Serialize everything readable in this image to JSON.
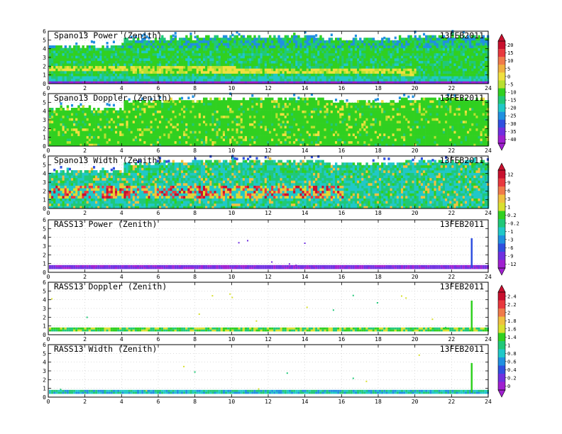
{
  "chart_data": [
    {
      "type": "heatmap",
      "title": "Spano13 Power (Zenith)",
      "date": "13FEB2011",
      "xlim": [
        0,
        24
      ],
      "ylim": [
        0,
        6
      ],
      "xticks": [
        "0",
        "2",
        "4",
        "6",
        "8",
        "10",
        "12",
        "14",
        "16",
        "18",
        "20",
        "22",
        "24"
      ],
      "yticks": [
        "0",
        "1",
        "2",
        "3",
        "4",
        "5",
        "6"
      ],
      "colorscale": "power",
      "pattern": "power",
      "top_profile": [
        [
          0,
          4.5
        ],
        [
          3.9,
          4.5
        ],
        [
          4,
          5.3
        ],
        [
          6,
          5.4
        ],
        [
          8,
          5.6
        ],
        [
          12,
          5.6
        ],
        [
          15,
          5.3
        ],
        [
          19,
          5.6
        ],
        [
          21,
          5.6
        ],
        [
          24,
          5.3
        ]
      ]
    },
    {
      "type": "heatmap",
      "title": "Spano13 Doppler (Zenith)",
      "date": "13FEB2011",
      "xlim": [
        0,
        24
      ],
      "ylim": [
        0,
        6
      ],
      "xticks": [
        "0",
        "2",
        "4",
        "6",
        "8",
        "10",
        "12",
        "14",
        "16",
        "18",
        "20",
        "22",
        "24"
      ],
      "yticks": [
        "0",
        "1",
        "2",
        "3",
        "4",
        "5",
        "6"
      ],
      "colorscale": "power",
      "pattern": "doppler",
      "top_profile": [
        [
          0,
          4.5
        ],
        [
          3.9,
          4.5
        ],
        [
          4,
          5.3
        ],
        [
          6,
          5.4
        ],
        [
          8,
          5.6
        ],
        [
          12,
          5.6
        ],
        [
          15,
          5.3
        ],
        [
          19,
          5.6
        ],
        [
          21,
          5.6
        ],
        [
          24,
          5.3
        ]
      ]
    },
    {
      "type": "heatmap",
      "title": "Spano13 Width (Zenith)",
      "date": "13FEB2011",
      "xlim": [
        0,
        24
      ],
      "ylim": [
        0,
        6
      ],
      "xticks": [
        "0",
        "2",
        "4",
        "6",
        "8",
        "10",
        "12",
        "14",
        "16",
        "18",
        "20",
        "22",
        "24"
      ],
      "yticks": [
        "0",
        "1",
        "2",
        "3",
        "4",
        "5",
        "6"
      ],
      "colorscale": "width",
      "pattern": "width",
      "top_profile": [
        [
          0,
          4.5
        ],
        [
          3.9,
          4.5
        ],
        [
          4,
          5.3
        ],
        [
          6,
          5.4
        ],
        [
          8,
          5.6
        ],
        [
          12,
          5.6
        ],
        [
          15,
          5.3
        ],
        [
          19,
          5.6
        ],
        [
          21,
          5.6
        ],
        [
          24,
          5.3
        ]
      ]
    },
    {
      "type": "heatmap",
      "title": "RASS13 Power (Zenith)",
      "date": "13FEB2011",
      "xlim": [
        0,
        24
      ],
      "ylim": [
        0,
        6
      ],
      "xticks": [
        "0",
        "2",
        "4",
        "6",
        "8",
        "10",
        "12",
        "14",
        "16",
        "18",
        "20",
        "22",
        "24"
      ],
      "yticks": [
        "0",
        "1",
        "2",
        "3",
        "4",
        "5",
        "6"
      ],
      "colorscale": "width",
      "pattern": "rass_power",
      "spike": {
        "x": 23.05,
        "ylim": [
          0.5,
          3.9
        ]
      }
    },
    {
      "type": "heatmap",
      "title": "RASS13 Doppler (Zenith)",
      "date": "13FEB2011",
      "xlim": [
        0,
        24
      ],
      "ylim": [
        0,
        6
      ],
      "xticks": [
        "0",
        "2",
        "4",
        "6",
        "8",
        "10",
        "12",
        "14",
        "16",
        "18",
        "20",
        "22",
        "24"
      ],
      "yticks": [
        "0",
        "1",
        "2",
        "3",
        "4",
        "5",
        "6"
      ],
      "colorscale": "rass",
      "pattern": "rass_doppler",
      "spike": {
        "x": 23.05,
        "ylim": [
          0.5,
          3.9
        ]
      }
    },
    {
      "type": "heatmap",
      "title": "RASS13 Width (Zenith)",
      "date": "13FEB2011",
      "xlim": [
        0,
        24
      ],
      "ylim": [
        0,
        6
      ],
      "xticks": [
        "0",
        "2",
        "4",
        "6",
        "8",
        "10",
        "12",
        "14",
        "16",
        "18",
        "20",
        "22",
        "24"
      ],
      "yticks": [
        "0",
        "1",
        "2",
        "3",
        "4",
        "5",
        "6"
      ],
      "colorscale": "rass",
      "pattern": "rass_width",
      "spike": {
        "x": 23.05,
        "ylim": [
          0.5,
          3.9
        ]
      }
    }
  ],
  "colorbars": [
    {
      "id": "power",
      "levels": [
        "20",
        "15",
        "10",
        "5",
        "0",
        "-5",
        "-10",
        "-15",
        "-20",
        "-25",
        "-30",
        "-35",
        "-40"
      ],
      "colors": [
        "#c8102e",
        "#e8383e",
        "#f07a4a",
        "#f0b040",
        "#f0e040",
        "#b8e030",
        "#30d020",
        "#20c878",
        "#20c8c8",
        "#2090e0",
        "#3050e0",
        "#7030e0",
        "#a020d0"
      ]
    },
    {
      "id": "width",
      "levels": [
        "12",
        "9",
        "6",
        "3",
        "1",
        "0.2",
        "-0.2",
        "-1",
        "-3",
        "-6",
        "-9",
        "-12"
      ],
      "colors": [
        "#c8102e",
        "#e8383e",
        "#f07a4a",
        "#f0c040",
        "#d8e030",
        "#30d020",
        "#20c878",
        "#20c8c8",
        "#2090e0",
        "#3050e0",
        "#7030e0",
        "#a020d0"
      ]
    },
    {
      "id": "rass",
      "levels": [
        "2.4",
        "2.2",
        "2",
        "1.8",
        "1.6",
        "1.4",
        "1",
        "0.8",
        "0.6",
        "0.4",
        "0.2",
        "0"
      ],
      "colors": [
        "#c8102e",
        "#e8383e",
        "#f07a4a",
        "#f0c040",
        "#d8e030",
        "#30d020",
        "#20c878",
        "#20c8c8",
        "#2090e0",
        "#3050e0",
        "#7030e0",
        "#a020d0"
      ]
    }
  ]
}
